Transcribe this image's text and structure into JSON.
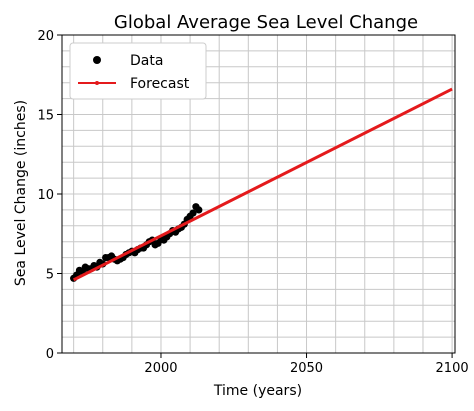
{
  "chart_data": {
    "type": "line",
    "title": "Global Average Sea Level Change",
    "xlabel": "Time (years)",
    "ylabel": "Sea Level Change (inches)",
    "xlim": [
      1966,
      2101
    ],
    "ylim": [
      0,
      20
    ],
    "x_ticks": [
      2000,
      2050,
      2100
    ],
    "y_ticks": [
      0,
      5,
      10,
      15,
      20
    ],
    "grid": true,
    "legend_position": "upper-left",
    "series": [
      {
        "name": "Data",
        "kind": "scatter",
        "color": "#000000",
        "x": [
          1970,
          1971,
          1972,
          1973,
          1974,
          1975,
          1976,
          1977,
          1978,
          1979,
          1980,
          1981,
          1982,
          1983,
          1984,
          1985,
          1986,
          1987,
          1988,
          1989,
          1990,
          1991,
          1992,
          1993,
          1994,
          1995,
          1996,
          1997,
          1998,
          1999,
          2000,
          2001,
          2002,
          2003,
          2004,
          2005,
          2006,
          2007,
          2008,
          2009,
          2010,
          2011,
          2012,
          2013
        ],
        "y": [
          4.7,
          4.9,
          5.2,
          5.1,
          5.4,
          5.3,
          5.3,
          5.5,
          5.4,
          5.7,
          5.6,
          6.0,
          6.0,
          6.1,
          5.9,
          5.8,
          5.9,
          6.0,
          6.2,
          6.3,
          6.4,
          6.3,
          6.5,
          6.6,
          6.6,
          6.8,
          7.0,
          7.1,
          6.8,
          6.9,
          7.2,
          7.1,
          7.3,
          7.5,
          7.7,
          7.6,
          7.8,
          7.9,
          8.1,
          8.4,
          8.6,
          8.8,
          9.2,
          9.0
        ]
      },
      {
        "name": "Forecast",
        "kind": "line",
        "color": "#e41a1c",
        "x": [
          1970,
          2100
        ],
        "y": [
          4.6,
          16.6
        ]
      }
    ]
  }
}
